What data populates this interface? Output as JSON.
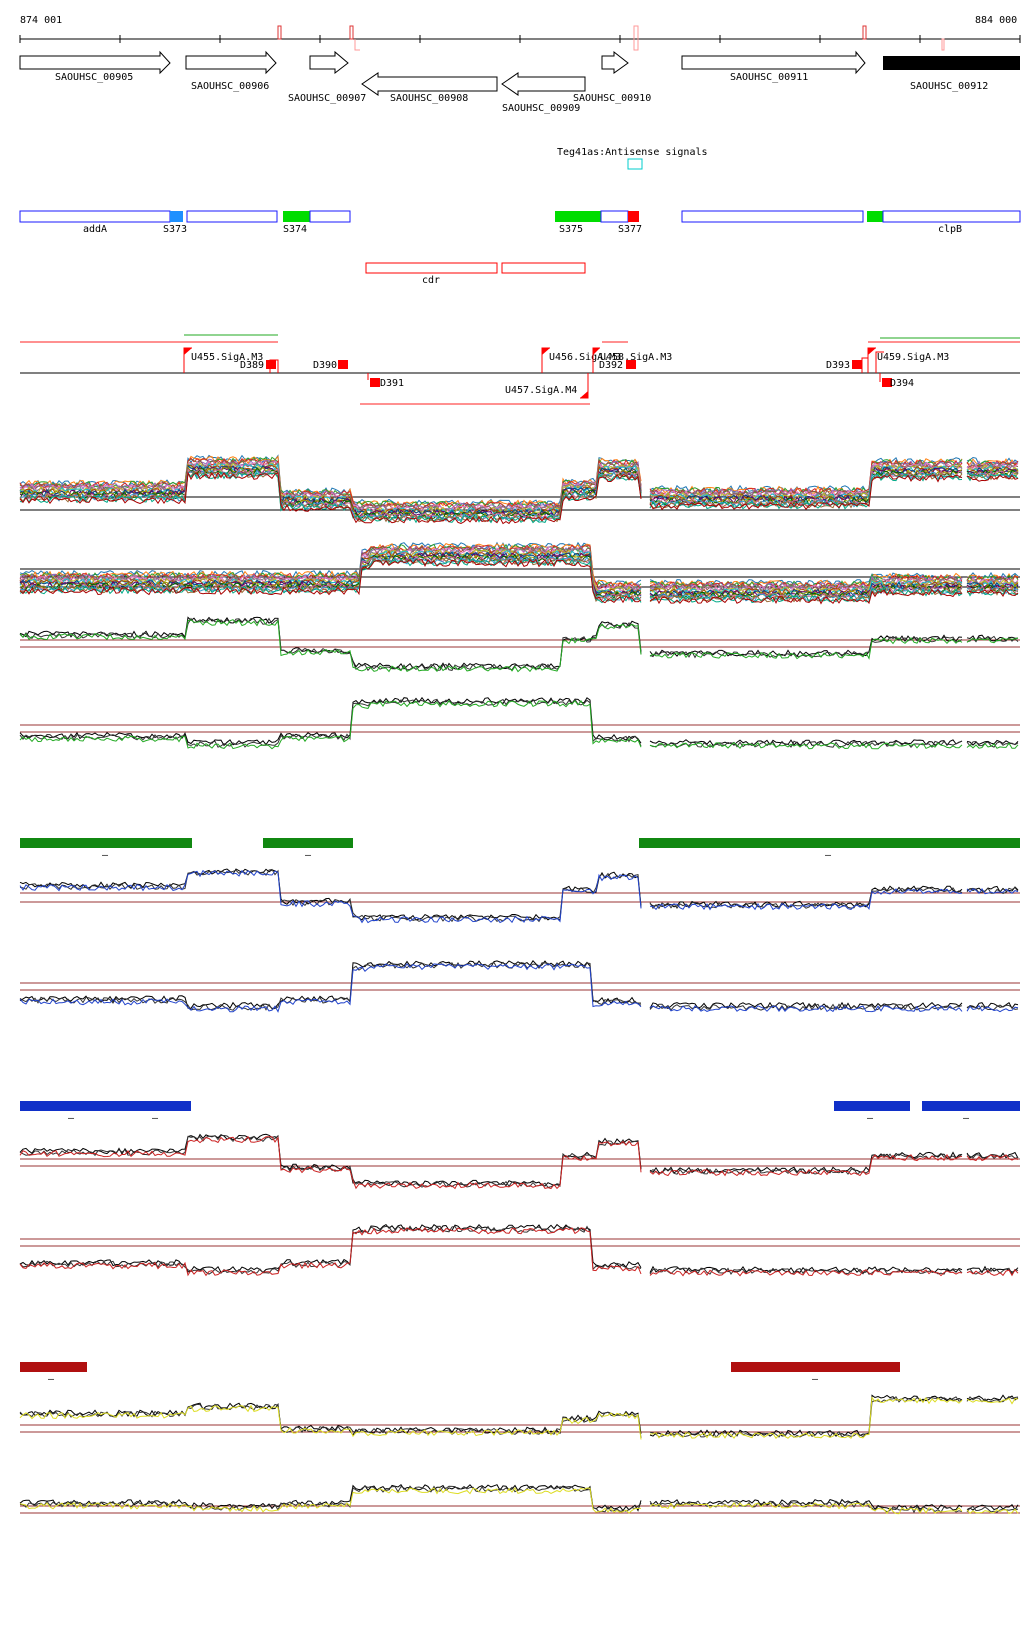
{
  "coords": {
    "start": "874 001",
    "end": "884 000"
  },
  "genes": [
    {
      "label": "SAOUHSC_00905"
    },
    {
      "label": "SAOUHSC_00906"
    },
    {
      "label": "SAOUHSC_00907"
    },
    {
      "label": "SAOUHSC_00908"
    },
    {
      "label": "SAOUHSC_00909"
    },
    {
      "label": "SAOUHSC_00910"
    },
    {
      "label": "SAOUHSC_00911"
    },
    {
      "label": "SAOUHSC_00912"
    }
  ],
  "antisense_label": "Teg41as:Antisense signals",
  "segments": {
    "addA": "addA",
    "s373": "S373",
    "s374": "S374",
    "s375": "S375",
    "s377": "S377",
    "clpB": "clpB",
    "cdr": "cdr"
  },
  "promoters": {
    "u455": "U455.SigA.M3",
    "u456": "U456.SigA.M3",
    "u458": "U458.SigA.M3",
    "u457": "U457.SigA.M4",
    "u459": "U459.SigA.M3",
    "d389": "D389",
    "d390": "D390",
    "d391": "D391",
    "d392": "D392",
    "d393": "D393",
    "d394": "D394"
  },
  "condition_bars": {
    "green_dash": "–",
    "blue_dash": "–",
    "red_dash": "–"
  },
  "colors": {
    "gene_stroke": "#000000",
    "gene_filled": "#000000",
    "segment_blue": "#1a1aff",
    "segment_green": "#00dd00",
    "segment_red": "#ff0000",
    "segment_lightblue": "#1e90ff",
    "bar_green": "#118811",
    "bar_blue": "#1030c8",
    "bar_red": "#b01010",
    "trace_green": "#22aa22",
    "trace_blue": "#2244cc",
    "trace_red": "#cc2222",
    "trace_yellow": "#dddd22",
    "threshold": "#993333"
  }
}
